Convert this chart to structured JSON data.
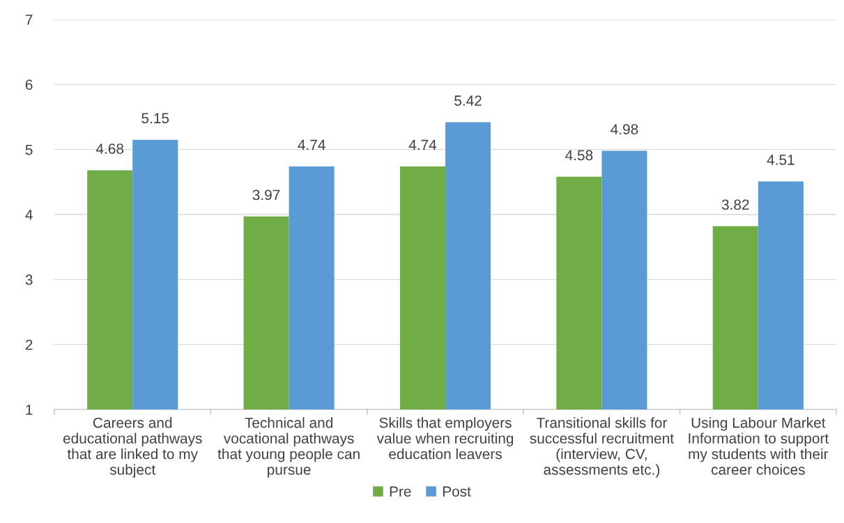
{
  "chart_data": {
    "type": "bar",
    "categories": [
      "Careers and\neducational pathways\nthat are linked to my\nsubject",
      "Technical and\nvocational pathways\nthat young people can\npursue",
      "Skills that employers\nvalue when recruiting\neducation leavers",
      "Transitional skills for\nsuccessful recruitment\n(interview, CV,\nassessments etc.)",
      "Using Labour Market\nInformation to support\nmy students with their\ncareer choices"
    ],
    "series": [
      {
        "name": "Pre",
        "color": "#70ad47",
        "values": [
          4.68,
          3.97,
          4.74,
          4.58,
          3.82
        ]
      },
      {
        "name": "Post",
        "color": "#5b9bd5",
        "values": [
          5.15,
          4.74,
          5.42,
          4.98,
          4.51
        ]
      }
    ],
    "ylim": [
      1,
      7
    ],
    "yticks": [
      1,
      2,
      3,
      4,
      5,
      6,
      7
    ],
    "grid": "y",
    "legend": "bottom",
    "data_labels": true
  }
}
